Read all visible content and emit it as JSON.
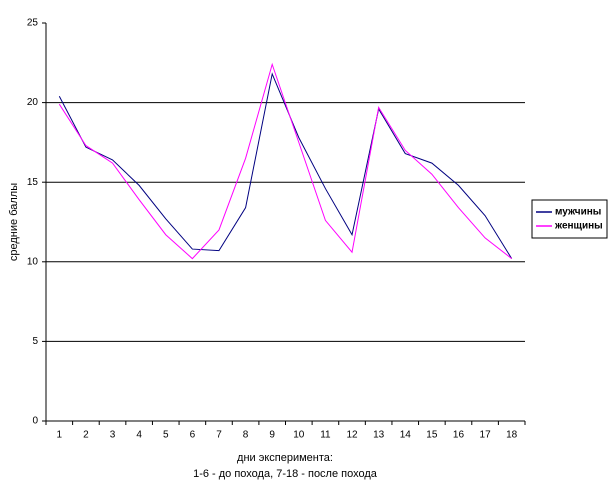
{
  "chart_data": {
    "type": "line",
    "y_label": "средние баллы",
    "x_label": [
      "дни эксперимента:",
      "1-6 - до похода, 7-18 - после похода"
    ],
    "categories": [
      "1",
      "2",
      "3",
      "4",
      "5",
      "6",
      "7",
      "8",
      "9",
      "10",
      "11",
      "12",
      "13",
      "14",
      "15",
      "16",
      "17",
      "18"
    ],
    "series": [
      {
        "name": "мужчины",
        "color": "#000080",
        "values": [
          20.4,
          17.2,
          16.4,
          14.8,
          12.7,
          10.8,
          10.7,
          13.4,
          21.8,
          17.8,
          14.6,
          11.7,
          19.6,
          16.8,
          16.2,
          14.8,
          12.9,
          10.2
        ]
      },
      {
        "name": "женщины",
        "color": "#ff00ff",
        "values": [
          19.9,
          17.3,
          16.2,
          13.9,
          11.7,
          10.2,
          12.0,
          16.5,
          22.4,
          17.5,
          12.6,
          10.6,
          19.7,
          17.0,
          15.5,
          13.4,
          11.5,
          10.2
        ]
      }
    ],
    "ylim": [
      0,
      25
    ],
    "yticks": [
      0,
      5,
      10,
      15,
      20,
      25
    ],
    "grid": true,
    "legend": "right"
  }
}
